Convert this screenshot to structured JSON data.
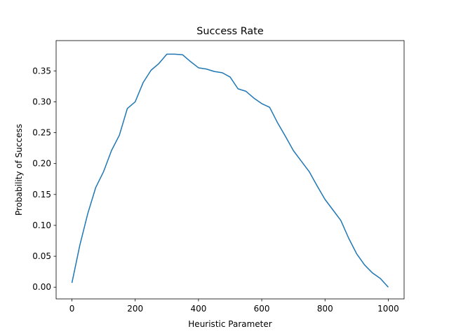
{
  "chart_data": {
    "type": "line",
    "title": "Success Rate",
    "x_label": "Heuristic Parameter",
    "y_label": "Probability of Success",
    "x": [
      0,
      25,
      50,
      75,
      100,
      125,
      150,
      175,
      200,
      225,
      250,
      275,
      300,
      325,
      350,
      375,
      400,
      425,
      450,
      475,
      500,
      525,
      550,
      575,
      600,
      625,
      650,
      675,
      700,
      725,
      750,
      775,
      800,
      825,
      850,
      875,
      900,
      925,
      950,
      975,
      1000
    ],
    "series": [
      {
        "name": "Success Rate",
        "color": "#1f77b4",
        "values": [
          0.007,
          0.068,
          0.119,
          0.161,
          0.187,
          0.221,
          0.246,
          0.289,
          0.3,
          0.331,
          0.351,
          0.362,
          0.377,
          0.377,
          0.376,
          0.365,
          0.355,
          0.353,
          0.349,
          0.347,
          0.34,
          0.321,
          0.317,
          0.306,
          0.297,
          0.291,
          0.266,
          0.244,
          0.221,
          0.204,
          0.187,
          0.164,
          0.142,
          0.125,
          0.108,
          0.079,
          0.054,
          0.036,
          0.023,
          0.014,
          0.0
        ]
      }
    ],
    "xlim": [
      -50,
      1050
    ],
    "ylim": [
      -0.019,
      0.399
    ],
    "xticks": [
      0,
      200,
      400,
      600,
      800,
      1000
    ],
    "yticks": [
      {
        "value": 0,
        "label": "0.00"
      },
      {
        "value": 0.05,
        "label": "0.05"
      },
      {
        "value": 0.1,
        "label": "0.10"
      },
      {
        "value": 0.15,
        "label": "0.15"
      },
      {
        "value": 0.2,
        "label": "0.20"
      },
      {
        "value": 0.25,
        "label": "0.25"
      },
      {
        "value": 0.3,
        "label": "0.30"
      },
      {
        "value": 0.35,
        "label": "0.35"
      }
    ],
    "grid": false
  }
}
